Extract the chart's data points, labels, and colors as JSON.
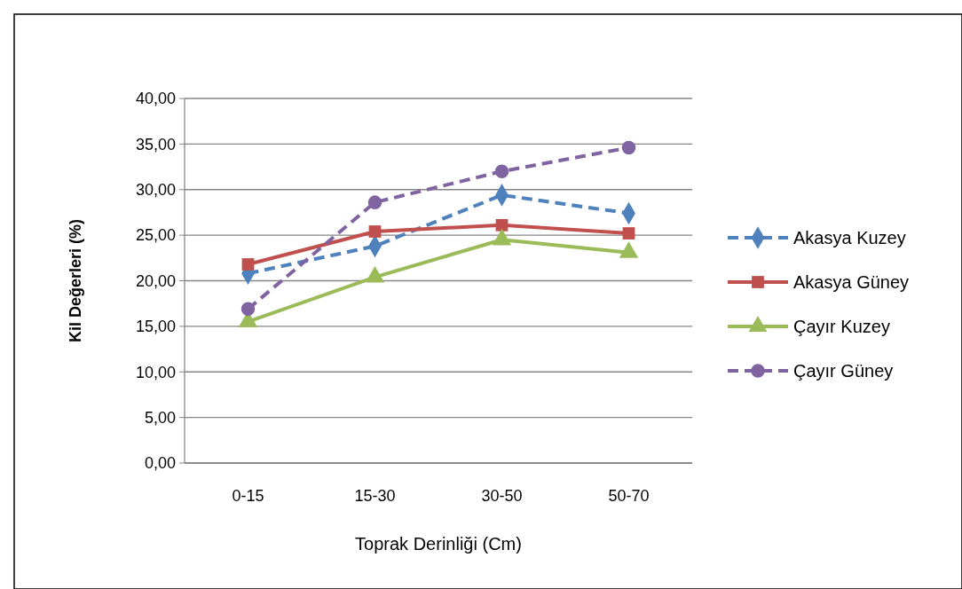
{
  "chart_data": {
    "type": "line",
    "xlabel": "Toprak Derinliği (Cm)",
    "ylabel": "Kil Değerleri (%)",
    "categories": [
      "0-15",
      "15-30",
      "30-50",
      "50-70"
    ],
    "series": [
      {
        "name": "Akasya Kuzey",
        "color": "#4f81bd",
        "marker": "diamond",
        "line_style": "dashed",
        "values": [
          20.8,
          23.8,
          29.4,
          27.4
        ]
      },
      {
        "name": "Akasya Güney",
        "color": "#c0504d",
        "marker": "square",
        "line_style": "solid",
        "values": [
          21.8,
          25.4,
          26.1,
          25.2
        ]
      },
      {
        "name": "Çayır Kuzey",
        "color": "#9bbb59",
        "marker": "triangle",
        "line_style": "solid",
        "values": [
          15.5,
          20.4,
          24.5,
          23.1
        ]
      },
      {
        "name": "Çayır Güney",
        "color": "#8064a2",
        "marker": "circle",
        "line_style": "dashed",
        "values": [
          16.9,
          28.6,
          32.0,
          34.6
        ]
      }
    ],
    "ylim": [
      0,
      40
    ],
    "yticks": [
      {
        "value": 0,
        "label": "0,00"
      },
      {
        "value": 5,
        "label": "5,00"
      },
      {
        "value": 10,
        "label": "10,00"
      },
      {
        "value": 15,
        "label": "15,00"
      },
      {
        "value": 20,
        "label": "20,00"
      },
      {
        "value": 25,
        "label": "25,00"
      },
      {
        "value": 30,
        "label": "30,00"
      },
      {
        "value": 35,
        "label": "35,00"
      },
      {
        "value": 40,
        "label": "40,00"
      }
    ],
    "grid": "y",
    "legend": "right"
  }
}
